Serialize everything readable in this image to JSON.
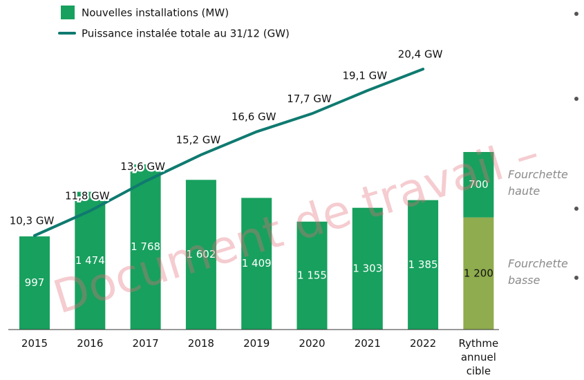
{
  "chart_data": {
    "type": "bar",
    "categories": [
      "2015",
      "2016",
      "2017",
      "2018",
      "2019",
      "2020",
      "2021",
      "2022",
      "Rythme annuel cible"
    ],
    "series": [
      {
        "name": "Nouvelles installations (MW)",
        "color": "#18a05e",
        "values": [
          997,
          1474,
          1768,
          1602,
          1409,
          1155,
          1303,
          1385,
          null
        ],
        "value_labels": [
          "997",
          "1 474",
          "1 768",
          "1 602",
          "1 409",
          "1 155",
          "1 303",
          "1 385",
          null
        ]
      },
      {
        "name": "Puissance instalée totale au 31/12 (GW)",
        "color": "#0f7a70",
        "axis": "y2",
        "type": "line",
        "values": [
          10.3,
          11.8,
          13.6,
          15.2,
          16.6,
          17.7,
          19.1,
          20.4,
          null
        ],
        "value_labels": [
          "10,3 GW",
          "11,8 GW",
          "13,6 GW",
          "15,2 GW",
          "16,6 GW",
          "17,7 GW",
          "19,1 GW",
          "20,4 GW",
          null
        ]
      }
    ],
    "target": {
      "category": "Rythme annuel cible",
      "segments": [
        {
          "name": "Fourchette basse",
          "value": 1200,
          "value_label": "1 200",
          "color": "#8fac4e"
        },
        {
          "name": "Fourchette haute",
          "value": 700,
          "color": "#18a05e"
        }
      ]
    },
    "watermark": "Document de travail –"
  }
}
